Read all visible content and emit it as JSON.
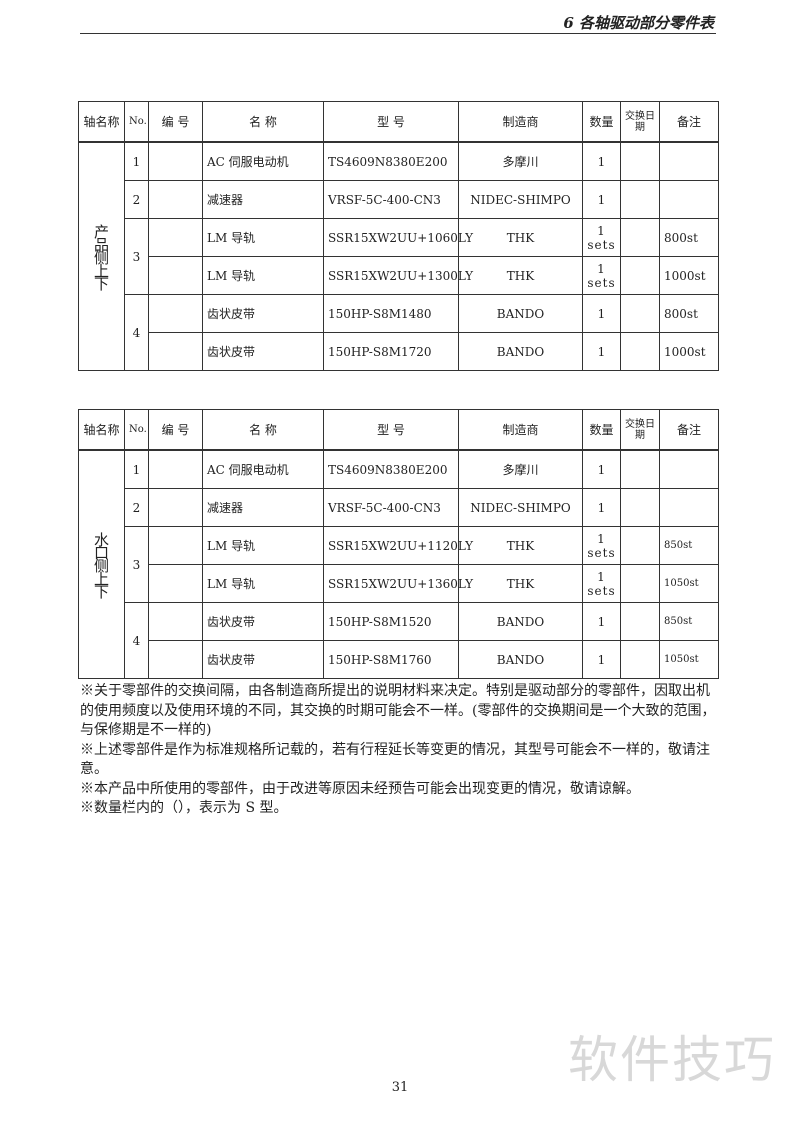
{
  "header": {
    "title": "6 各轴驱动部分零件表"
  },
  "columns": [
    "轴名称",
    "No.",
    "编 号",
    "名 称",
    "型 号",
    "制造商",
    "数量",
    "交换日期",
    "备注"
  ],
  "tables": [
    {
      "axis": "产品侧上下",
      "groups": [
        {
          "no": "1",
          "rows": [
            {
              "code": "",
              "name": "AC 伺服电动机",
              "model": "TS4609N8380E200",
              "maker": "多摩川",
              "qty": "1",
              "date": "",
              "note": ""
            }
          ]
        },
        {
          "no": "2",
          "rows": [
            {
              "code": "",
              "name": "减速器",
              "model": "VRSF-5C-400-CN3",
              "maker": "NIDEC-SHIMPO",
              "qty": "1",
              "date": "",
              "note": ""
            }
          ]
        },
        {
          "no": "3",
          "rows": [
            {
              "code": "",
              "name": "LM 导轨",
              "model": "SSR15XW2UU+1060LY",
              "maker": "THK",
              "qty": "1 sets",
              "date": "",
              "note": "800st"
            },
            {
              "code": "",
              "name": "LM 导轨",
              "model": "SSR15XW2UU+1300LY",
              "maker": "THK",
              "qty": "1 sets",
              "date": "",
              "note": "1000st"
            }
          ]
        },
        {
          "no": "4",
          "rows": [
            {
              "code": "",
              "name": "齿状皮带",
              "model": "150HP-S8M1480",
              "maker": "BANDO",
              "qty": "1",
              "date": "",
              "note": "800st"
            },
            {
              "code": "",
              "name": "齿状皮带",
              "model": "150HP-S8M1720",
              "maker": "BANDO",
              "qty": "1",
              "date": "",
              "note": "1000st"
            }
          ]
        }
      ]
    },
    {
      "axis": "水口侧上下",
      "groups": [
        {
          "no": "1",
          "rows": [
            {
              "code": "",
              "name": "AC 伺服电动机",
              "model": "TS4609N8380E200",
              "maker": "多摩川",
              "qty": "1",
              "date": "",
              "note": ""
            }
          ]
        },
        {
          "no": "2",
          "rows": [
            {
              "code": "",
              "name": "减速器",
              "model": "VRSF-5C-400-CN3",
              "maker": "NIDEC-SHIMPO",
              "qty": "1",
              "date": "",
              "note": ""
            }
          ]
        },
        {
          "no": "3",
          "rows": [
            {
              "code": "",
              "name": "LM 导轨",
              "model": "SSR15XW2UU+1120LY",
              "maker": "THK",
              "qty": "1 sets",
              "date": "",
              "note": "850st"
            },
            {
              "code": "",
              "name": "LM 导轨",
              "model": "SSR15XW2UU+1360LY",
              "maker": "THK",
              "qty": "1 sets",
              "date": "",
              "note": "1050st"
            }
          ]
        },
        {
          "no": "4",
          "rows": [
            {
              "code": "",
              "name": "齿状皮带",
              "model": "150HP-S8M1520",
              "maker": "BANDO",
              "qty": "1",
              "date": "",
              "note": "850st"
            },
            {
              "code": "",
              "name": "齿状皮带",
              "model": "150HP-S8M1760",
              "maker": "BANDO",
              "qty": "1",
              "date": "",
              "note": "1050st"
            }
          ]
        }
      ]
    }
  ],
  "notes": [
    "※关于零部件的交换间隔，由各制造商所提出的说明材料来决定。特别是驱动部分的零部件，因取出机的使用频度以及使用环境的不同，其交换的时期可能会不一样。(零部件的交换期间是一个大致的范围，与保修期是不一样的)",
    "※上述零部件是作为标准规格所记载的，若有行程延长等变更的情况，其型号可能会不一样的，敬请注意。",
    "※本产品中所使用的零部件，由于改进等原因未经预告可能会出现变更的情况，敬请谅解。",
    "※数量栏内的（），表示为 S 型。"
  ],
  "page_number": "31",
  "watermark": "软件技巧"
}
